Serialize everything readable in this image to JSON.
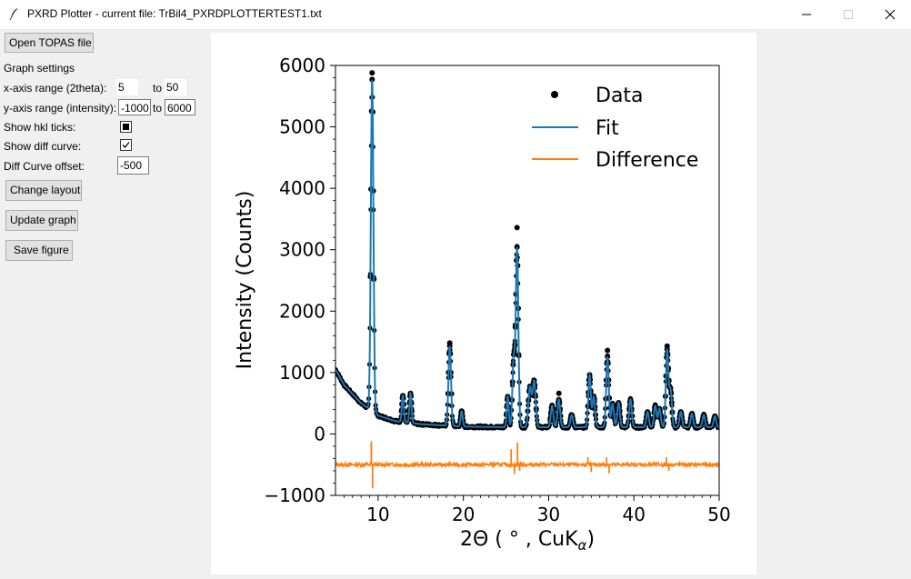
{
  "window": {
    "title": "PXRD Plotter - current file: TrBil4_PXRDPLOTTERTEST1.txt"
  },
  "panel": {
    "open_button": "Open TOPAS file",
    "graph_settings_label": "Graph settings",
    "x_range_label": "x-axis range (2theta):",
    "x_min": "5",
    "x_to": "to",
    "x_max": "50",
    "y_range_label": "y-axis range (intensity):",
    "y_min": "-1000",
    "y_to": "to",
    "y_max": "6000",
    "hkl_label": "Show hkl ticks:",
    "hkl_state": "indeterminate",
    "diff_label": "Show diff curve:",
    "diff_state": "checked",
    "offset_label": "Diff Curve offset:",
    "offset_value": "-500",
    "change_layout_button": "Change layout",
    "update_graph_button": "Update graph",
    "save_figure_button": "Save figure"
  },
  "colors": {
    "fit": "#1f77b4",
    "difference": "#ff7f0e",
    "data": "#000000"
  },
  "chart_data": {
    "type": "line",
    "title": "",
    "xlabel": "2Θ ( ° , CuK",
    "xlabel_sub": "α",
    "xlabel_end": ")",
    "ylabel": "Intensity (Counts)",
    "xlim": [
      5,
      50
    ],
    "ylim": [
      -1000,
      6000
    ],
    "xticks": [
      10,
      20,
      30,
      40,
      50
    ],
    "xtick_labels": [
      "10",
      "20",
      "30",
      "40",
      "50"
    ],
    "yticks": [
      -1000,
      0,
      1000,
      2000,
      3000,
      4000,
      5000,
      6000
    ],
    "ytick_labels": [
      "−1000",
      "0",
      "1000",
      "2000",
      "3000",
      "4000",
      "5000",
      "6000"
    ],
    "legend_position": "top-right",
    "legend": [
      {
        "name": "Data",
        "style": "marker"
      },
      {
        "name": "Fit",
        "style": "line-blue"
      },
      {
        "name": "Difference",
        "style": "line-orange"
      }
    ],
    "diff_offset": -500,
    "background": {
      "x": [
        5,
        6,
        8,
        10,
        12,
        15,
        20,
        25,
        30,
        35,
        40,
        45,
        50
      ],
      "y": [
        1050,
        800,
        500,
        300,
        210,
        160,
        120,
        110,
        110,
        110,
        110,
        110,
        110
      ]
    },
    "peaks": [
      {
        "x": 9.3,
        "height": 5400,
        "width": 0.15
      },
      {
        "x": 12.9,
        "height": 430,
        "width": 0.12
      },
      {
        "x": 13.8,
        "height": 480,
        "width": 0.12
      },
      {
        "x": 18.4,
        "height": 1300,
        "width": 0.15
      },
      {
        "x": 19.8,
        "height": 250,
        "width": 0.12
      },
      {
        "x": 25.2,
        "height": 500,
        "width": 0.12
      },
      {
        "x": 25.9,
        "height": 1100,
        "width": 0.15
      },
      {
        "x": 26.3,
        "height": 2900,
        "width": 0.15
      },
      {
        "x": 27.8,
        "height": 650,
        "width": 0.18
      },
      {
        "x": 28.3,
        "height": 750,
        "width": 0.18
      },
      {
        "x": 30.4,
        "height": 350,
        "width": 0.15
      },
      {
        "x": 31.2,
        "height": 450,
        "width": 0.15
      },
      {
        "x": 32.7,
        "height": 200,
        "width": 0.15
      },
      {
        "x": 34.8,
        "height": 850,
        "width": 0.15
      },
      {
        "x": 35.3,
        "height": 500,
        "width": 0.15
      },
      {
        "x": 36.9,
        "height": 1150,
        "width": 0.15
      },
      {
        "x": 37.5,
        "height": 380,
        "width": 0.15
      },
      {
        "x": 38.2,
        "height": 400,
        "width": 0.15
      },
      {
        "x": 39.6,
        "height": 450,
        "width": 0.15
      },
      {
        "x": 41.6,
        "height": 250,
        "width": 0.15
      },
      {
        "x": 42.5,
        "height": 350,
        "width": 0.15
      },
      {
        "x": 43.0,
        "height": 300,
        "width": 0.15
      },
      {
        "x": 43.9,
        "height": 1250,
        "width": 0.15
      },
      {
        "x": 44.3,
        "height": 600,
        "width": 0.15
      },
      {
        "x": 45.5,
        "height": 250,
        "width": 0.15
      },
      {
        "x": 46.8,
        "height": 220,
        "width": 0.15
      },
      {
        "x": 48.2,
        "height": 200,
        "width": 0.15
      },
      {
        "x": 49.5,
        "height": 180,
        "width": 0.15
      }
    ],
    "data_outliers": [
      {
        "x": 9.3,
        "y": 5880
      },
      {
        "x": 26.3,
        "y": 3360
      },
      {
        "x": 18.4,
        "y": 1480
      },
      {
        "x": 36.9,
        "y": 1360
      },
      {
        "x": 43.9,
        "y": 1430
      },
      {
        "x": 31.2,
        "y": 660
      }
    ],
    "diff_spikes": [
      {
        "x": 9.2,
        "y": -120
      },
      {
        "x": 9.35,
        "y": -880
      },
      {
        "x": 25.6,
        "y": -250
      },
      {
        "x": 26.0,
        "y": -650
      },
      {
        "x": 26.35,
        "y": -140
      },
      {
        "x": 26.6,
        "y": -600
      },
      {
        "x": 34.6,
        "y": -380
      },
      {
        "x": 35.0,
        "y": -620
      },
      {
        "x": 36.8,
        "y": -380
      },
      {
        "x": 37.1,
        "y": -640
      },
      {
        "x": 43.8,
        "y": -380
      },
      {
        "x": 44.1,
        "y": -600
      }
    ]
  }
}
